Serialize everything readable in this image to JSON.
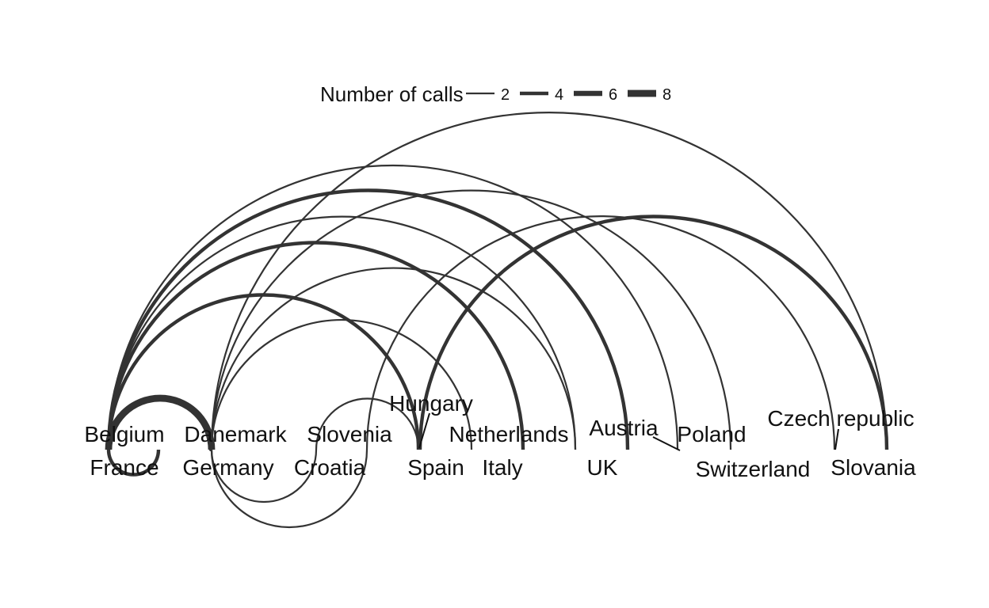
{
  "legend": {
    "title": "Number of calls",
    "entries": [
      {
        "label": "2",
        "calls": 2
      },
      {
        "label": "4",
        "calls": 4
      },
      {
        "label": "6",
        "calls": 6
      },
      {
        "label": "8",
        "calls": 8
      }
    ]
  },
  "nodes": [
    {
      "id": "belgium",
      "label": "Belgium"
    },
    {
      "id": "france",
      "label": "France"
    },
    {
      "id": "danemark",
      "label": "Danemark"
    },
    {
      "id": "germany",
      "label": "Germany"
    },
    {
      "id": "slovenia",
      "label": "Slovenia"
    },
    {
      "id": "croatia",
      "label": "Croatia"
    },
    {
      "id": "hungary",
      "label": "Hungary"
    },
    {
      "id": "spain",
      "label": "Spain"
    },
    {
      "id": "netherlands",
      "label": "Netherlands"
    },
    {
      "id": "italy",
      "label": "Italy"
    },
    {
      "id": "austria",
      "label": "Austria"
    },
    {
      "id": "uk",
      "label": "UK"
    },
    {
      "id": "poland",
      "label": "Poland"
    },
    {
      "id": "switzerland",
      "label": "Switzerland"
    },
    {
      "id": "czech",
      "label": "Czech republic"
    },
    {
      "id": "slovania",
      "label": "Slovania"
    }
  ],
  "edges": [
    {
      "from": "belgium",
      "to": "germany",
      "calls": 8
    },
    {
      "from": "belgium",
      "to": "france",
      "calls": 4
    },
    {
      "from": "belgium",
      "to": "netherlands",
      "calls": 4
    },
    {
      "from": "belgium",
      "to": "spain",
      "calls": 4
    },
    {
      "from": "belgium",
      "to": "austria",
      "calls": 4
    },
    {
      "from": "belgium",
      "to": "uk",
      "calls": 2
    },
    {
      "from": "belgium",
      "to": "poland",
      "calls": 2
    },
    {
      "from": "germany",
      "to": "slovania",
      "calls": 2
    },
    {
      "from": "germany",
      "to": "switzerland",
      "calls": 2
    },
    {
      "from": "germany",
      "to": "uk",
      "calls": 2
    },
    {
      "from": "germany",
      "to": "italy",
      "calls": 2
    },
    {
      "from": "germany",
      "to": "danemark",
      "calls": 2
    },
    {
      "from": "germany",
      "to": "croatia",
      "calls": 2
    },
    {
      "from": "germany",
      "to": "slovenia",
      "calls": 2
    },
    {
      "from": "croatia",
      "to": "czech",
      "calls": 2
    },
    {
      "from": "slovenia",
      "to": "spain",
      "calls": 2
    },
    {
      "from": "hungary",
      "to": "slovania",
      "calls": 4
    }
  ]
}
